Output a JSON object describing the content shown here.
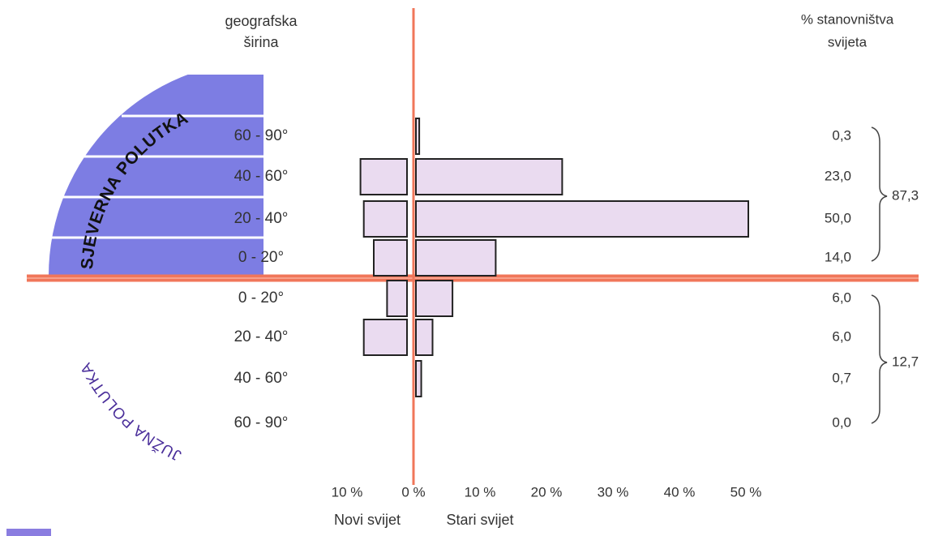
{
  "chart_data": {
    "type": "butterfly",
    "latitude_header": [
      "geografska",
      "širina"
    ],
    "share_header": [
      "% stanovništva",
      "svijeta"
    ],
    "hemispheres": {
      "north": "SJEVERNA POLUTKA",
      "south": "JUŽNA POLUTKA"
    },
    "categories": [
      "60 - 90°",
      "40 - 60°",
      "20 - 40°",
      "0 - 20°",
      "0 - 20°",
      "20 - 40°",
      "40 - 60°",
      "60 - 90°"
    ],
    "series": [
      {
        "name": "Novi svijet",
        "color": "#eadbf0",
        "values": [
          0,
          7,
          6.5,
          5,
          3,
          6.5,
          0,
          0
        ]
      },
      {
        "name": "Stari svijet",
        "color": "#eadbf0",
        "values": [
          0.5,
          22,
          50,
          12,
          5.5,
          2.5,
          0.8,
          0
        ]
      }
    ],
    "xlim": [
      -10,
      50
    ],
    "xticks": [
      {
        "value": -10,
        "label": "10 %"
      },
      {
        "value": 0,
        "label": "0 %"
      },
      {
        "value": 10,
        "label": "10 %"
      },
      {
        "value": 20,
        "label": "20 %"
      },
      {
        "value": 30,
        "label": "30 %"
      },
      {
        "value": 40,
        "label": "40 %"
      },
      {
        "value": 50,
        "label": "50 %"
      }
    ],
    "population_share": {
      "values": [
        0.3,
        23.0,
        50.0,
        14.0,
        6.0,
        6.0,
        0.7,
        0.0
      ],
      "value_labels": [
        "0,3",
        "23,0",
        "50,0",
        "14,0",
        "6,0",
        "6,0",
        "0,7",
        "0,0"
      ]
    },
    "totals": {
      "values": [
        87.3,
        12.7
      ],
      "value_labels": [
        "87,3",
        "12,7"
      ]
    }
  }
}
